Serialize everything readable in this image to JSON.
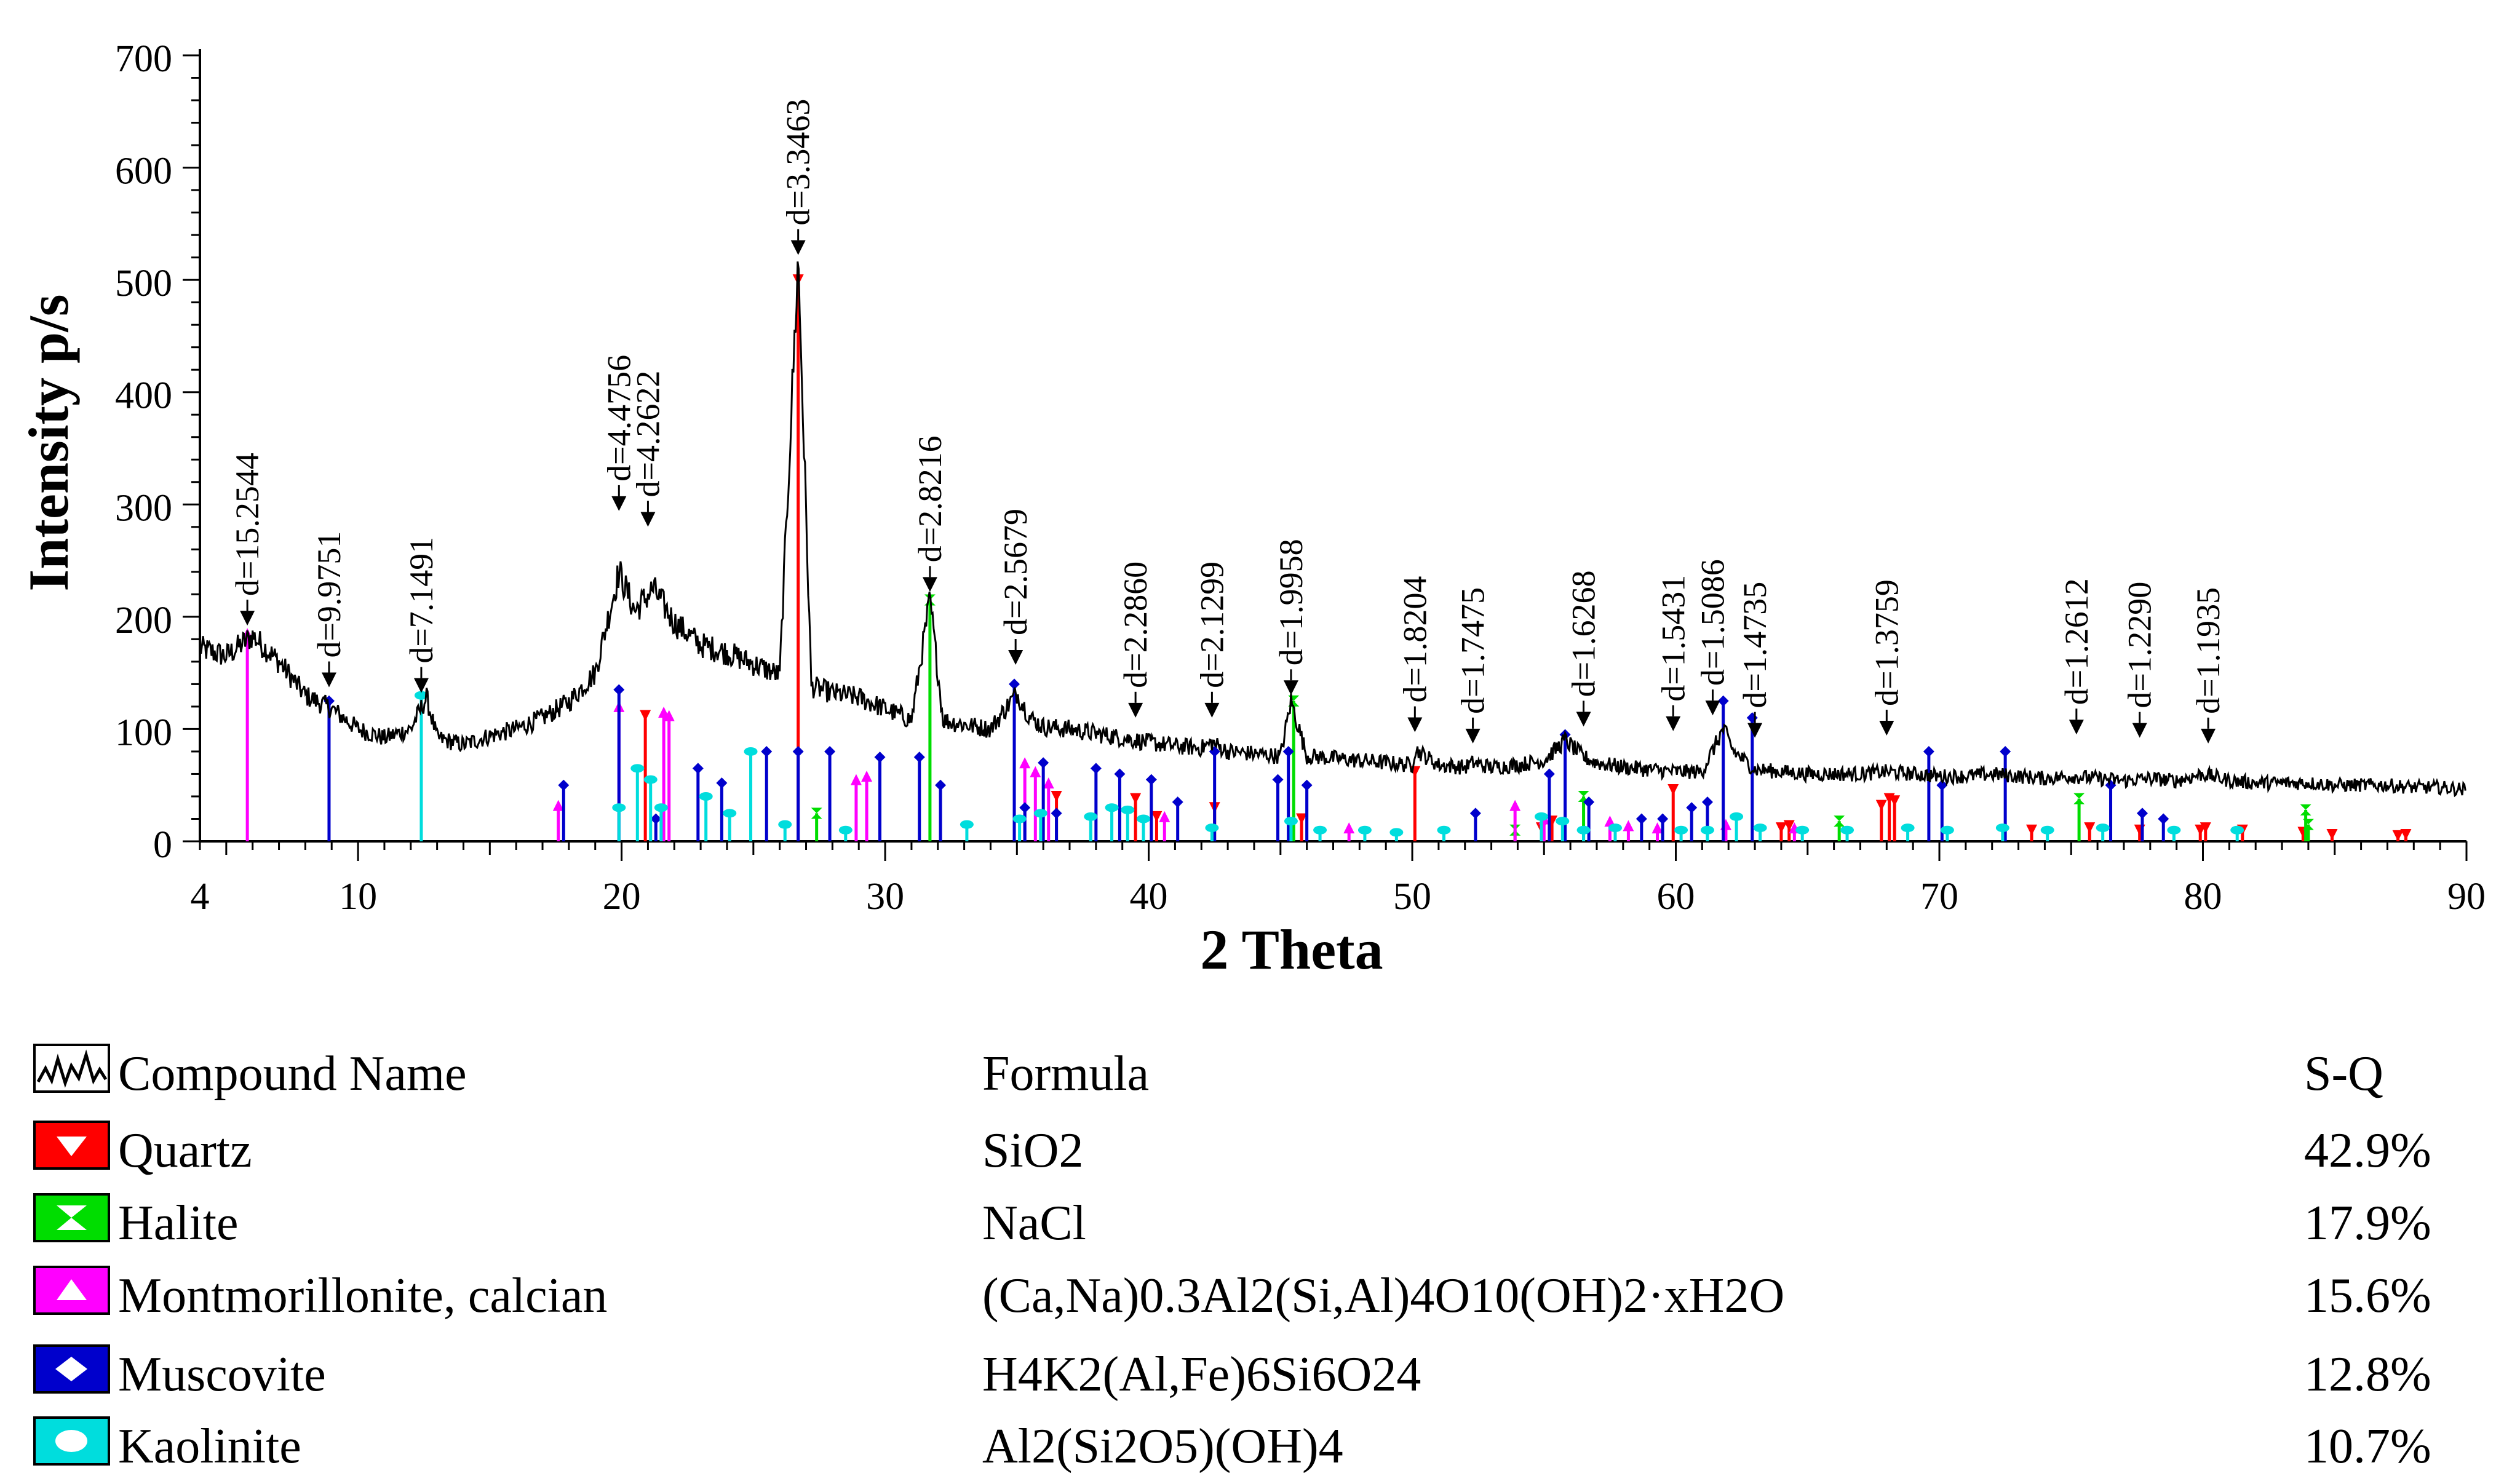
{
  "chart_data": {
    "type": "line",
    "xlabel": "2 Theta",
    "ylabel": "Intensity p/s",
    "xlim": [
      4,
      90
    ],
    "ylim": [
      0,
      700
    ],
    "x_ticks": [
      4,
      10,
      20,
      30,
      40,
      50,
      60,
      70,
      80,
      90
    ],
    "y_ticks": [
      0,
      100,
      200,
      300,
      400,
      500,
      600,
      700
    ],
    "pattern": {
      "name": "Compound Name",
      "points": [
        [
          4,
          172
        ],
        [
          5,
          165
        ],
        [
          6,
          183
        ],
        [
          7,
          160
        ],
        [
          8,
          130
        ],
        [
          9,
          118
        ],
        [
          10,
          100
        ],
        [
          11,
          92
        ],
        [
          12,
          100
        ],
        [
          12.6,
          128
        ],
        [
          13,
          92
        ],
        [
          14,
          86
        ],
        [
          15,
          94
        ],
        [
          16,
          100
        ],
        [
          17,
          110
        ],
        [
          18,
          124
        ],
        [
          19,
          150
        ],
        [
          19.9,
          240
        ],
        [
          20.5,
          205
        ],
        [
          21.2,
          225
        ],
        [
          22,
          195
        ],
        [
          23,
          175
        ],
        [
          24,
          168
        ],
        [
          25,
          158
        ],
        [
          26,
          148
        ],
        [
          26.7,
          520
        ],
        [
          27.2,
          138
        ],
        [
          28,
          132
        ],
        [
          29,
          128
        ],
        [
          30,
          118
        ],
        [
          31,
          108
        ],
        [
          31.7,
          215
        ],
        [
          32.2,
          108
        ],
        [
          33,
          104
        ],
        [
          34,
          100
        ],
        [
          35,
          132
        ],
        [
          35.5,
          110
        ],
        [
          36,
          102
        ],
        [
          37,
          100
        ],
        [
          38,
          96
        ],
        [
          39,
          92
        ],
        [
          40,
          88
        ],
        [
          41,
          85
        ],
        [
          42,
          83
        ],
        [
          42.4,
          88
        ],
        [
          43,
          80
        ],
        [
          44,
          78
        ],
        [
          45,
          76
        ],
        [
          45.4,
          125
        ],
        [
          46,
          76
        ],
        [
          47,
          74
        ],
        [
          48,
          72
        ],
        [
          49,
          70
        ],
        [
          50,
          68
        ],
        [
          50.1,
          82
        ],
        [
          51,
          68
        ],
        [
          52,
          66
        ],
        [
          52.3,
          70
        ],
        [
          53,
          66
        ],
        [
          54,
          68
        ],
        [
          55,
          72
        ],
        [
          55.8,
          90
        ],
        [
          56.5,
          75
        ],
        [
          57,
          70
        ],
        [
          58,
          66
        ],
        [
          59,
          64
        ],
        [
          60,
          62
        ],
        [
          61,
          62
        ],
        [
          61.8,
          100
        ],
        [
          62.2,
          80
        ],
        [
          63,
          64
        ],
        [
          64,
          62
        ],
        [
          65,
          60
        ],
        [
          66,
          60
        ],
        [
          67,
          60
        ],
        [
          68,
          62
        ],
        [
          69,
          60
        ],
        [
          70,
          58
        ],
        [
          71,
          58
        ],
        [
          72,
          60
        ],
        [
          73,
          58
        ],
        [
          74,
          56
        ],
        [
          75,
          58
        ],
        [
          76,
          56
        ],
        [
          77,
          54
        ],
        [
          78,
          56
        ],
        [
          79,
          54
        ],
        [
          80,
          60
        ],
        [
          81,
          54
        ],
        [
          82,
          52
        ],
        [
          83,
          52
        ],
        [
          84,
          52
        ],
        [
          85,
          50
        ],
        [
          86,
          50
        ],
        [
          87,
          50
        ],
        [
          88,
          48
        ],
        [
          89,
          48
        ],
        [
          90,
          46
        ]
      ]
    },
    "d_labels": [
      {
        "two_theta": 5.8,
        "intensity": 190,
        "label": "d=15.2544"
      },
      {
        "two_theta": 8.9,
        "intensity": 135,
        "label": "d=9.9751"
      },
      {
        "two_theta": 12.4,
        "intensity": 130,
        "label": "d=7.1491"
      },
      {
        "two_theta": 19.9,
        "intensity": 292,
        "label": "d=4.4756"
      },
      {
        "two_theta": 21.0,
        "intensity": 278,
        "label": "d=4.2622"
      },
      {
        "two_theta": 26.7,
        "intensity": 520,
        "label": "d=3.3463"
      },
      {
        "two_theta": 31.7,
        "intensity": 220,
        "label": "d=2.8216"
      },
      {
        "two_theta": 34.95,
        "intensity": 155,
        "label": "d=2.5679"
      },
      {
        "two_theta": 39.5,
        "intensity": 108,
        "label": "d=2.2860"
      },
      {
        "two_theta": 42.4,
        "intensity": 108,
        "label": "d=2.1299"
      },
      {
        "two_theta": 45.4,
        "intensity": 128,
        "label": "d=1.9958"
      },
      {
        "two_theta": 50.1,
        "intensity": 95,
        "label": "d=1.8204"
      },
      {
        "two_theta": 52.3,
        "intensity": 85,
        "label": "d=1.7475"
      },
      {
        "two_theta": 56.5,
        "intensity": 100,
        "label": "d=1.6268"
      },
      {
        "two_theta": 59.9,
        "intensity": 96,
        "label": "d=1.5431"
      },
      {
        "two_theta": 61.4,
        "intensity": 110,
        "label": "d=1.5086"
      },
      {
        "two_theta": 63.0,
        "intensity": 90,
        "label": "d=1.4735"
      },
      {
        "two_theta": 68.0,
        "intensity": 92,
        "label": "d=1.3759"
      },
      {
        "two_theta": 75.2,
        "intensity": 93,
        "label": "d=1.2612"
      },
      {
        "two_theta": 77.6,
        "intensity": 90,
        "label": "d=1.2290"
      },
      {
        "two_theta": 80.2,
        "intensity": 85,
        "label": "d=1.1935"
      }
    ],
    "phases": [
      {
        "name": "Quartz",
        "color": "#ff0000",
        "marker": "triangle-down",
        "peaks": [
          [
            20.9,
            112
          ],
          [
            26.7,
            500
          ],
          [
            36.5,
            40
          ],
          [
            39.5,
            38
          ],
          [
            40.3,
            22
          ],
          [
            42.5,
            30
          ],
          [
            45.8,
            20
          ],
          [
            50.1,
            62
          ],
          [
            54.9,
            12
          ],
          [
            55.3,
            18
          ],
          [
            59.9,
            46
          ],
          [
            64.0,
            12
          ],
          [
            64.3,
            14
          ],
          [
            67.8,
            32
          ],
          [
            68.1,
            38
          ],
          [
            68.3,
            36
          ],
          [
            73.5,
            10
          ],
          [
            75.7,
            12
          ],
          [
            77.6,
            10
          ],
          [
            79.9,
            10
          ],
          [
            80.1,
            12
          ],
          [
            81.5,
            10
          ],
          [
            83.8,
            8
          ],
          [
            84.9,
            6
          ],
          [
            87.4,
            5
          ],
          [
            87.7,
            6
          ]
        ]
      },
      {
        "name": "Halite",
        "color": "#00dd00",
        "marker": "hourglass",
        "peaks": [
          [
            27.4,
            25
          ],
          [
            31.7,
            215
          ],
          [
            45.5,
            125
          ],
          [
            53.9,
            10
          ],
          [
            56.5,
            40
          ],
          [
            66.2,
            18
          ],
          [
            75.3,
            38
          ],
          [
            83.9,
            28
          ],
          [
            84.0,
            15
          ]
        ]
      },
      {
        "name": "Montmorillonite, calcian",
        "color": "#ff00ff",
        "marker": "triangle-up",
        "peaks": [
          [
            5.8,
            185
          ],
          [
            17.6,
            32
          ],
          [
            19.9,
            120
          ],
          [
            21.6,
            115
          ],
          [
            21.8,
            112
          ],
          [
            28.9,
            55
          ],
          [
            29.3,
            58
          ],
          [
            35.3,
            70
          ],
          [
            35.7,
            62
          ],
          [
            36.2,
            52
          ],
          [
            40.6,
            22
          ],
          [
            47.6,
            12
          ],
          [
            53.9,
            32
          ],
          [
            55.0,
            20
          ],
          [
            57.5,
            18
          ],
          [
            58.2,
            14
          ],
          [
            59.3,
            12
          ],
          [
            61.9,
            15
          ],
          [
            64.5,
            12
          ]
        ]
      },
      {
        "name": "Muscovite",
        "color": "#0000cc",
        "marker": "diamond",
        "peaks": [
          [
            8.9,
            125
          ],
          [
            17.8,
            50
          ],
          [
            19.9,
            135
          ],
          [
            21.3,
            20
          ],
          [
            22.9,
            65
          ],
          [
            23.8,
            52
          ],
          [
            25.5,
            80
          ],
          [
            26.7,
            80
          ],
          [
            27.9,
            80
          ],
          [
            29.8,
            75
          ],
          [
            31.3,
            75
          ],
          [
            32.1,
            50
          ],
          [
            34.9,
            140
          ],
          [
            35.3,
            30
          ],
          [
            36.0,
            70
          ],
          [
            36.5,
            25
          ],
          [
            38.0,
            65
          ],
          [
            38.9,
            60
          ],
          [
            40.1,
            55
          ],
          [
            41.1,
            35
          ],
          [
            42.5,
            80
          ],
          [
            44.9,
            55
          ],
          [
            45.3,
            80
          ],
          [
            46.0,
            50
          ],
          [
            52.4,
            25
          ],
          [
            55.2,
            60
          ],
          [
            55.8,
            95
          ],
          [
            56.7,
            35
          ],
          [
            58.7,
            20
          ],
          [
            59.5,
            20
          ],
          [
            60.6,
            30
          ],
          [
            61.2,
            35
          ],
          [
            61.8,
            125
          ],
          [
            62.9,
            110
          ],
          [
            69.6,
            80
          ],
          [
            70.1,
            50
          ],
          [
            72.5,
            80
          ],
          [
            76.5,
            50
          ],
          [
            77.7,
            25
          ],
          [
            78.5,
            20
          ]
        ]
      },
      {
        "name": "Kaolinite",
        "color": "#00dddd",
        "marker": "ellipse",
        "peaks": [
          [
            12.4,
            130
          ],
          [
            19.9,
            30
          ],
          [
            20.6,
            65
          ],
          [
            21.1,
            55
          ],
          [
            21.5,
            30
          ],
          [
            23.2,
            40
          ],
          [
            24.1,
            25
          ],
          [
            24.9,
            80
          ],
          [
            26.2,
            15
          ],
          [
            28.5,
            10
          ],
          [
            33.1,
            15
          ],
          [
            35.1,
            20
          ],
          [
            35.9,
            25
          ],
          [
            37.8,
            22
          ],
          [
            38.6,
            30
          ],
          [
            39.2,
            28
          ],
          [
            39.8,
            20
          ],
          [
            42.4,
            12
          ],
          [
            45.4,
            18
          ],
          [
            46.5,
            10
          ],
          [
            48.2,
            10
          ],
          [
            49.4,
            8
          ],
          [
            51.2,
            10
          ],
          [
            54.9,
            22
          ],
          [
            55.7,
            18
          ],
          [
            56.5,
            10
          ],
          [
            57.7,
            12
          ],
          [
            60.2,
            10
          ],
          [
            61.2,
            10
          ],
          [
            62.3,
            22
          ],
          [
            63.2,
            12
          ],
          [
            64.8,
            10
          ],
          [
            66.5,
            10
          ],
          [
            68.8,
            12
          ],
          [
            70.3,
            10
          ],
          [
            72.4,
            12
          ],
          [
            74.1,
            10
          ],
          [
            76.2,
            12
          ],
          [
            78.9,
            10
          ],
          [
            81.3,
            10
          ]
        ]
      }
    ],
    "legend": {
      "headers": {
        "name": "Compound Name",
        "formula": "Formula",
        "sq": "S-Q"
      },
      "rows": [
        {
          "name": "Quartz",
          "formula": "SiO2",
          "sq": "42.9%",
          "color": "#ff0000",
          "icon": "quartz-triangle-down-icon"
        },
        {
          "name": "Halite",
          "formula": "NaCl",
          "sq": "17.9%",
          "color": "#00dd00",
          "icon": "halite-hourglass-icon"
        },
        {
          "name": "Montmorillonite, calcian",
          "formula": "(Ca,Na)0.3Al2(Si,Al)4O10(OH)2·xH2O",
          "sq": "15.6%",
          "color": "#ff00ff",
          "icon": "montmorillonite-triangle-up-icon"
        },
        {
          "name": "Muscovite",
          "formula": "H4K2(Al,Fe)6Si6O24",
          "sq": "12.8%",
          "color": "#0000cc",
          "icon": "muscovite-diamond-icon"
        },
        {
          "name": "Kaolinite",
          "formula": "Al2(Si2O5)(OH)4",
          "sq": "10.7%",
          "color": "#00dddd",
          "icon": "kaolinite-ellipse-icon"
        }
      ]
    }
  }
}
